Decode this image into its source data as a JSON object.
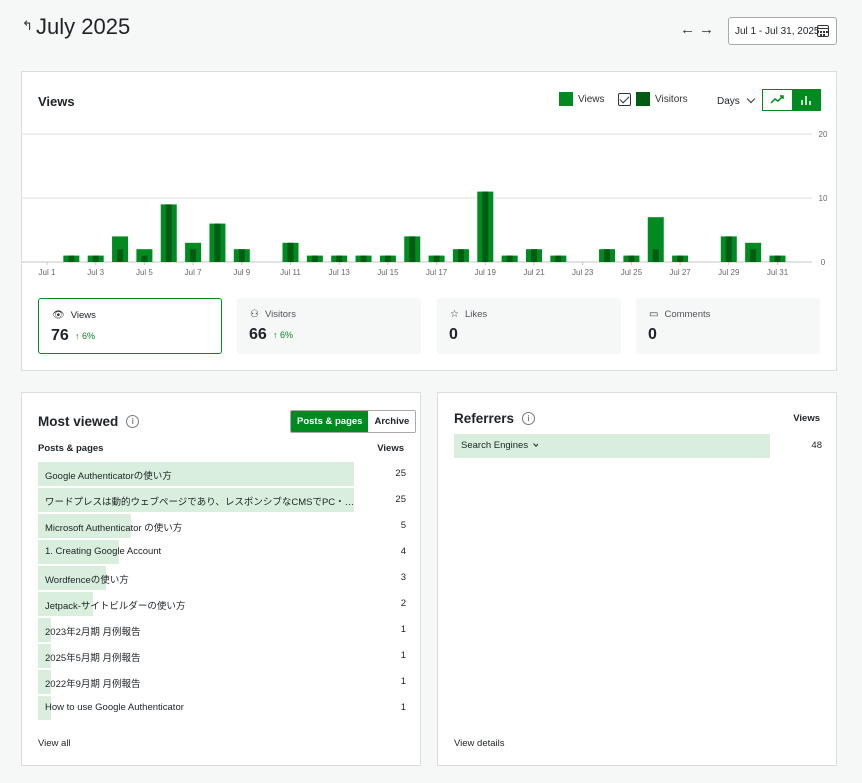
{
  "header": {
    "back_icon": "back-arrow-icon",
    "title": "July 2025",
    "date_range": "Jul 1 - Jul 31, 2025"
  },
  "chart": {
    "title": "Views",
    "legend_views": "Views",
    "legend_visitors": "Visitors",
    "period": "Days",
    "colors": {
      "views": "#008a20",
      "visitors": "#005c12"
    }
  },
  "chart_data": {
    "type": "bar",
    "categories": [
      "Jul 1",
      "Jul 2",
      "Jul 3",
      "Jul 4",
      "Jul 5",
      "Jul 6",
      "Jul 7",
      "Jul 8",
      "Jul 9",
      "Jul 10",
      "Jul 11",
      "Jul 12",
      "Jul 13",
      "Jul 14",
      "Jul 15",
      "Jul 16",
      "Jul 17",
      "Jul 18",
      "Jul 19",
      "Jul 20",
      "Jul 21",
      "Jul 22",
      "Jul 23",
      "Jul 24",
      "Jul 25",
      "Jul 26",
      "Jul 27",
      "Jul 28",
      "Jul 29",
      "Jul 30",
      "Jul 31"
    ],
    "tick_labels": [
      "Jul 1",
      "Jul 3",
      "Jul 5",
      "Jul 7",
      "Jul 9",
      "Jul 11",
      "Jul 13",
      "Jul 15",
      "Jul 17",
      "Jul 19",
      "Jul 21",
      "Jul 23",
      "Jul 25",
      "Jul 27",
      "Jul 29",
      "Jul 31"
    ],
    "series": [
      {
        "name": "Views",
        "values": [
          0,
          1,
          1,
          4,
          2,
          9,
          3,
          6,
          2,
          0,
          3,
          1,
          1,
          1,
          1,
          4,
          1,
          2,
          11,
          1,
          2,
          1,
          0,
          2,
          1,
          7,
          1,
          0,
          4,
          3,
          1
        ]
      },
      {
        "name": "Visitors",
        "values": [
          0,
          1,
          1,
          2,
          1,
          9,
          2,
          6,
          2,
          0,
          3,
          1,
          1,
          1,
          1,
          4,
          1,
          2,
          11,
          1,
          2,
          1,
          0,
          2,
          1,
          2,
          1,
          0,
          4,
          2,
          1
        ]
      }
    ],
    "y_ticks": [
      0,
      10,
      20
    ],
    "ylim": [
      0,
      20
    ],
    "grid": true,
    "legend": "top-right"
  },
  "tiles": [
    {
      "label": "Views",
      "value": "76",
      "change": "↑ 6%",
      "icon": "eye-icon"
    },
    {
      "label": "Visitors",
      "value": "66",
      "change": "↑ 6%",
      "icon": "people-icon"
    },
    {
      "label": "Likes",
      "value": "0",
      "change": "",
      "icon": "star-icon"
    },
    {
      "label": "Comments",
      "value": "0",
      "change": "",
      "icon": "comment-icon"
    }
  ],
  "most_viewed": {
    "title": "Most viewed",
    "toggle_on": "Posts & pages",
    "toggle_off": "Archive",
    "col_left": "Posts & pages",
    "col_right": "Views",
    "max": 25,
    "rows": [
      {
        "label": "Google Authenticatorの使い方",
        "views": 25
      },
      {
        "label": "ワードプレスは動的ウェブページであり、レスポンシブなCMSでPC・スマートフォン対応",
        "views": 25
      },
      {
        "label": "Microsoft Authenticator の使い方",
        "views": 5
      },
      {
        "label": "1. Creating Google Account",
        "views": 4
      },
      {
        "label": "Wordfenceの使い方",
        "views": 3
      },
      {
        "label": "Jetpack-サイトビルダーの使い方",
        "views": 2
      },
      {
        "label": "2023年2月期 月例報告",
        "views": 1
      },
      {
        "label": "2025年5月期 月例報告",
        "views": 1
      },
      {
        "label": "2022年9月期 月例報告",
        "views": 1
      },
      {
        "label": "How to use Google Authenticator",
        "views": 1
      }
    ],
    "footer": "View all"
  },
  "referrers": {
    "title": "Referrers",
    "col_right": "Views",
    "rows": [
      {
        "label": "Search Engines",
        "views": 48
      }
    ],
    "footer": "View details"
  }
}
